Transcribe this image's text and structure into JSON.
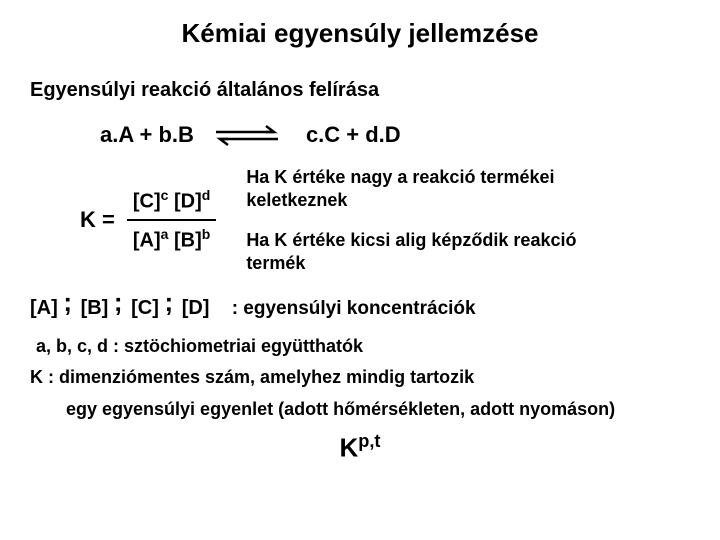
{
  "title": "Kémiai egyensúly jellemzése",
  "subtitle": "Egyensúlyi reakció általános felírása",
  "reaction": {
    "lhs": "a.A + b.B",
    "rhs": "c.C + d.D"
  },
  "equilibrium": {
    "k_label": "K =",
    "numerator_html": "[C]<sup>c</sup> [D]<sup>d</sup>",
    "denominator_html": "[A]<sup>a</sup> [B]<sup>b</sup>"
  },
  "notes": {
    "n1": "Ha K értéke nagy a reakció termékei keletkeznek",
    "n2": "Ha K értéke kicsi alig képződik  reakció termék"
  },
  "concentrations": {
    "a": "[A]",
    "b": "[B]",
    "c": "[C]",
    "d": "[D]",
    "label": ": egyensúlyi koncentrációk"
  },
  "coeff_line": "a, b, c, d : sztöchiometriai együtthatók",
  "k_line1": "K : dimenziómentes szám, amelyhez mindig tartozik",
  "k_line2": "egy egyensúlyi egyenlet (adott hőmérsékleten, adott nyomáson)",
  "kpt_html": "K<sup>p,t</sup>",
  "arrow": {
    "stroke": "#000000",
    "stroke_width": 2
  }
}
